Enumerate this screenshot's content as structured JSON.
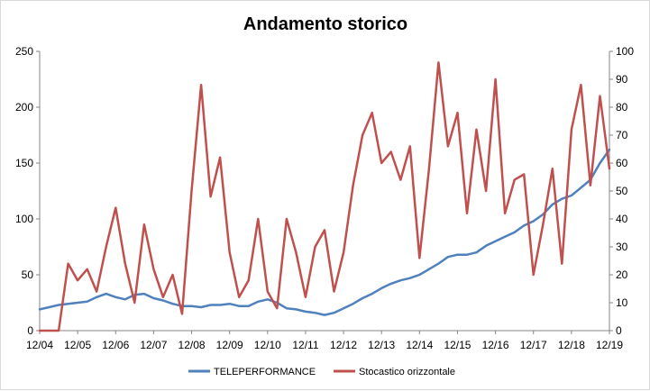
{
  "chart_data": {
    "type": "line",
    "title": "Andamento storico",
    "xlabel": "",
    "ylabel": "",
    "x_ticks": [
      "12/04",
      "12/05",
      "12/06",
      "12/07",
      "12/08",
      "12/09",
      "12/10",
      "12/11",
      "12/12",
      "12/13",
      "12/14",
      "12/15",
      "12/16",
      "12/17",
      "12/18",
      "12/19"
    ],
    "ylim_left": [
      0,
      250
    ],
    "yticks_left": [
      0,
      50,
      100,
      150,
      200,
      250
    ],
    "ylim_right": [
      0,
      100
    ],
    "yticks_right": [
      0,
      10,
      20,
      30,
      40,
      50,
      60,
      70,
      80,
      90,
      100
    ],
    "grid": false,
    "legend_position": "bottom",
    "series": [
      {
        "name": "TELEPERFORMANCE",
        "axis": "left",
        "color": "#4f81bd",
        "x": [
          "12/04",
          "03/05",
          "06/05",
          "09/05",
          "12/05",
          "03/06",
          "06/06",
          "09/06",
          "12/06",
          "03/07",
          "06/07",
          "09/07",
          "12/07",
          "03/08",
          "06/08",
          "09/08",
          "12/08",
          "03/09",
          "06/09",
          "09/09",
          "12/09",
          "03/10",
          "06/10",
          "09/10",
          "12/10",
          "03/11",
          "06/11",
          "09/11",
          "12/11",
          "03/12",
          "06/12",
          "09/12",
          "12/12",
          "03/13",
          "06/13",
          "09/13",
          "12/13",
          "03/14",
          "06/14",
          "09/14",
          "12/14",
          "03/15",
          "06/15",
          "09/15",
          "12/15",
          "03/16",
          "06/16",
          "09/16",
          "12/16",
          "03/17",
          "06/17",
          "09/17",
          "12/17",
          "03/18",
          "06/18",
          "09/18",
          "12/18",
          "03/19",
          "06/19",
          "09/19",
          "12/19"
        ],
        "values": [
          19,
          21,
          23,
          24,
          25,
          26,
          30,
          33,
          30,
          28,
          32,
          33,
          29,
          27,
          24,
          22,
          22,
          21,
          23,
          23,
          24,
          22,
          22,
          26,
          28,
          25,
          20,
          19,
          17,
          16,
          14,
          16,
          20,
          24,
          29,
          33,
          38,
          42,
          45,
          47,
          50,
          55,
          60,
          66,
          68,
          68,
          70,
          76,
          80,
          84,
          88,
          94,
          98,
          104,
          113,
          118,
          121,
          128,
          135,
          150,
          162
        ]
      },
      {
        "name": "Stocastico orizzontale",
        "axis": "right",
        "color": "#c0504d",
        "x": [
          "12/04",
          "03/05",
          "06/05",
          "09/05",
          "12/05",
          "03/06",
          "06/06",
          "09/06",
          "12/06",
          "03/07",
          "06/07",
          "09/07",
          "12/07",
          "03/08",
          "06/08",
          "09/08",
          "12/08",
          "03/09",
          "06/09",
          "09/09",
          "12/09",
          "03/10",
          "06/10",
          "09/10",
          "12/10",
          "03/11",
          "06/11",
          "09/11",
          "12/11",
          "03/12",
          "06/12",
          "09/12",
          "12/12",
          "03/13",
          "06/13",
          "09/13",
          "12/13",
          "03/14",
          "06/14",
          "09/14",
          "12/14",
          "03/15",
          "06/15",
          "09/15",
          "12/15",
          "03/16",
          "06/16",
          "09/16",
          "12/16",
          "03/17",
          "06/17",
          "09/17",
          "12/17",
          "03/18",
          "06/18",
          "09/18",
          "12/18",
          "03/19",
          "06/19",
          "09/19",
          "12/19"
        ],
        "values": [
          0,
          0,
          0,
          24,
          18,
          22,
          14,
          30,
          44,
          24,
          10,
          38,
          22,
          12,
          20,
          6,
          50,
          88,
          48,
          62,
          28,
          12,
          18,
          40,
          14,
          8,
          40,
          28,
          12,
          30,
          36,
          14,
          28,
          52,
          70,
          78,
          60,
          64,
          54,
          66,
          26,
          58,
          96,
          66,
          78,
          42,
          72,
          50,
          90,
          42,
          54,
          56,
          20,
          38,
          58,
          24,
          72,
          88,
          52,
          84,
          58
        ]
      }
    ]
  }
}
